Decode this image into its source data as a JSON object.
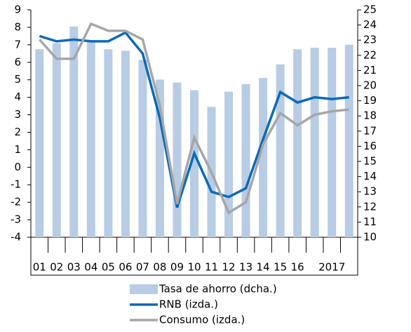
{
  "chart_data": {
    "type": "bar-line",
    "categories": [
      "01",
      "02",
      "03",
      "04",
      "05",
      "06",
      "07",
      "08",
      "09",
      "10",
      "11",
      "12",
      "13",
      "14",
      "15",
      "16",
      null,
      "2017",
      null
    ],
    "series": [
      {
        "name": "Tasa de ahorro (dcha.)",
        "type": "bar",
        "axis": "y2",
        "color": "#b8cce4",
        "values": [
          22.4,
          22.8,
          23.9,
          22.9,
          22.4,
          22.3,
          21.7,
          20.4,
          20.2,
          19.7,
          18.6,
          19.6,
          20.1,
          20.5,
          21.4,
          22.4,
          22.5,
          22.5,
          22.7
        ]
      },
      {
        "name": "RNB (izda.)",
        "type": "line",
        "color": "#0a6ab8",
        "values": [
          7.5,
          7.2,
          7.3,
          7.2,
          7.2,
          7.7,
          6.5,
          2.8,
          -2.3,
          0.8,
          -1.4,
          -1.7,
          -1.2,
          1.6,
          4.3,
          3.7,
          4.0,
          3.9,
          4.0
        ]
      },
      {
        "name": "Consumo (izda.)",
        "type": "line",
        "color": "#a6a6a6",
        "values": [
          7.3,
          6.2,
          6.2,
          8.2,
          7.8,
          7.8,
          7.3,
          3.5,
          -2.1,
          1.7,
          -0.3,
          -2.6,
          -2.0,
          1.3,
          3.1,
          2.4,
          3.0,
          3.2,
          3.3
        ]
      }
    ],
    "ylim": [
      -4,
      9
    ],
    "yticks": [
      -4,
      -3,
      -2,
      -1,
      0,
      1,
      2,
      3,
      4,
      5,
      6,
      7,
      8,
      9
    ],
    "y2lim": [
      10,
      25
    ],
    "y2ticks": [
      10,
      11,
      12,
      13,
      14,
      15,
      16,
      17,
      18,
      19,
      20,
      21,
      22,
      23,
      24,
      25
    ],
    "legend": "bottom"
  }
}
